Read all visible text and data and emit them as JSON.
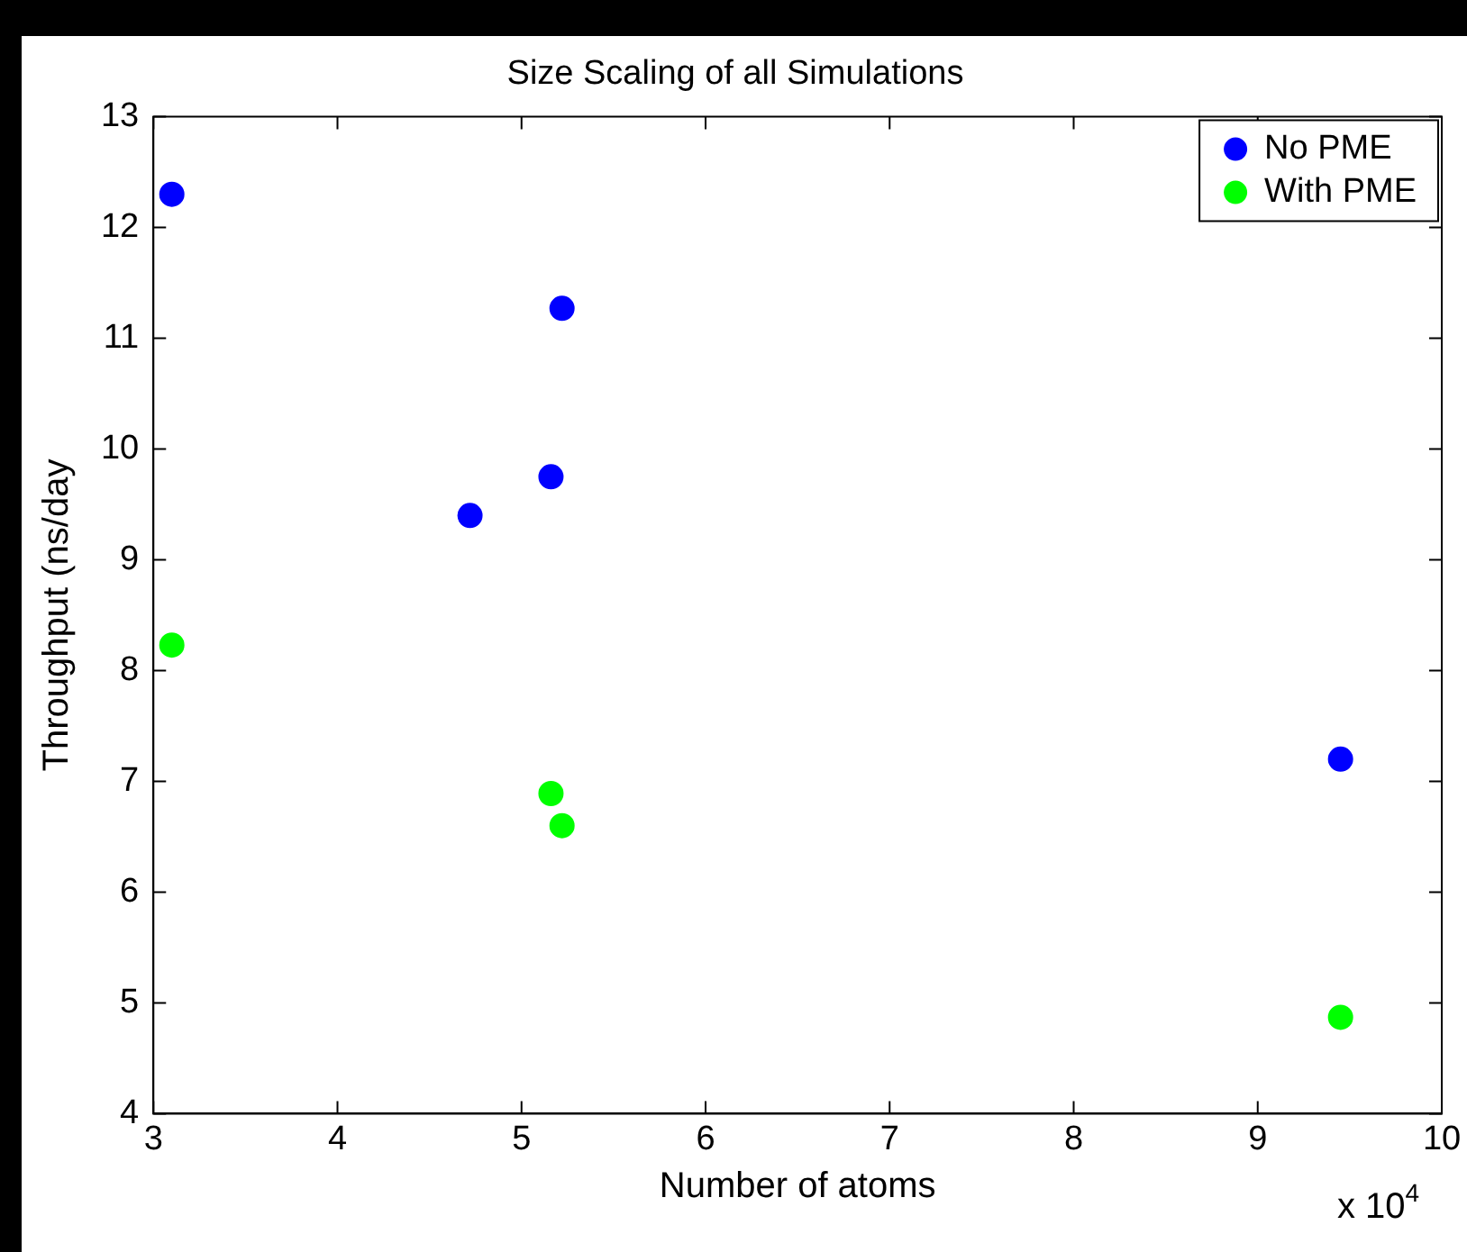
{
  "chart_data": {
    "type": "scatter",
    "title": "Size Scaling of all Simulations",
    "xlabel": "Number of atoms",
    "ylabel": "Throughput (ns/day",
    "series": [
      {
        "name": "No PME",
        "color": "#0000ff",
        "x": [
          3.1,
          5.22,
          5.16,
          4.72,
          9.45
        ],
        "values": [
          12.3,
          11.27,
          9.75,
          9.4,
          7.2
        ]
      },
      {
        "name": "With PME",
        "color": "#00ff00",
        "x": [
          3.1,
          5.16,
          5.22,
          9.45
        ],
        "values": [
          8.23,
          6.89,
          6.6,
          4.87
        ]
      }
    ],
    "xlim": [
      3,
      10
    ],
    "xticks": [
      3,
      4,
      5,
      6,
      7,
      8,
      9,
      10
    ],
    "ylim": [
      4,
      13
    ],
    "yticks": [
      4,
      5,
      6,
      7,
      8,
      9,
      10,
      11,
      12,
      13
    ],
    "annotations": [
      "x 10$^{4}$"
    ],
    "legend": "top right",
    "marker": "circle",
    "grid": false
  }
}
